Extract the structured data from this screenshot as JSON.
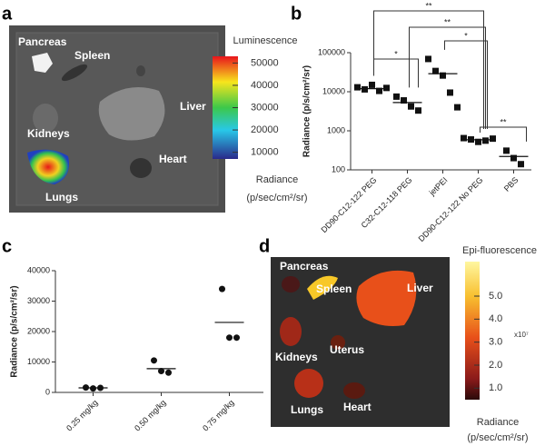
{
  "images": [
    {
      "panel": "a",
      "labels": [
        "Pancreas",
        "Spleen",
        "Liver",
        "Kidneys",
        "Heart",
        "Lungs"
      ],
      "colorbar": {
        "title": "Luminescence",
        "lim": [
          7000,
          53000
        ],
        "ticks": [
          10000,
          20000,
          30000,
          40000,
          50000
        ],
        "label_lines": [
          "Radiance",
          "(p/sec/cm²/sr)"
        ]
      }
    },
    {
      "panel": "d",
      "labels": [
        "Pancreas",
        "Spleen",
        "Liver",
        "Kidneys",
        "Uterus",
        "Heart",
        "Lungs"
      ],
      "colorbar": {
        "title": "Epi-fluorescence",
        "lim": [
          0.5,
          6.5
        ],
        "ticks": [
          {
            "value": 1,
            "label": "1.0"
          },
          {
            "value": 2,
            "label": "2.0"
          },
          {
            "value": 3,
            "label": "3.0"
          },
          {
            "value": 4,
            "label": "4.0"
          },
          {
            "value": 5,
            "label": "5.0"
          }
        ],
        "multiplier": "x10⁷",
        "label_lines": [
          "Radiance",
          "(p/sec/cm²/sr)"
        ]
      }
    }
  ],
  "chart_data": [
    {
      "panel": "b",
      "type": "dotplot",
      "categories": [
        "DD90-C12-122 PEG",
        "C32-C12-118 PEG",
        "jetPEI",
        "DD90-C12-122 No PEG",
        "PBS"
      ],
      "values": [
        [
          13000,
          11500,
          15000,
          10500,
          12500
        ],
        [
          7500,
          6000,
          4200,
          3300
        ],
        [
          69000,
          34000,
          26000,
          9500,
          4000
        ],
        [
          650,
          600,
          520,
          560,
          630
        ],
        [
          310,
          200,
          140
        ]
      ],
      "means": [
        12000,
        5300,
        29000,
        590,
        220
      ],
      "ylabel": "Radiance (p/s/cm²/sr)",
      "ylim": [
        100,
        100000
      ],
      "yticks": [
        100,
        1000,
        10000,
        100000
      ],
      "log_scale": true,
      "color": "#111111",
      "marker": "square",
      "brackets": [
        {
          "from": 0,
          "to": 3,
          "label": "**"
        },
        {
          "from": 1,
          "to": 3,
          "label": "**"
        },
        {
          "from": 2,
          "to": 3,
          "label": "*"
        },
        {
          "from": 0,
          "to": 1,
          "label": "*"
        },
        {
          "from": 3,
          "to": 4,
          "label": "**"
        }
      ]
    },
    {
      "panel": "c",
      "type": "dotplot",
      "categories": [
        "0.25 mg/kg",
        "0.50 mg/kg",
        "0.75 mg/kg"
      ],
      "values": [
        [
          1600,
          1300,
          1500
        ],
        [
          10500,
          7000,
          6500
        ],
        [
          34000,
          18000,
          18000
        ]
      ],
      "means": [
        1500,
        7800,
        23000
      ],
      "ylabel": "Radiance  (p/s/cm²/sr)",
      "ylim": [
        0,
        40000
      ],
      "yticks": [
        0,
        10000,
        20000,
        30000,
        40000
      ],
      "log_scale": false,
      "color": "#111111",
      "marker": "circle"
    }
  ]
}
